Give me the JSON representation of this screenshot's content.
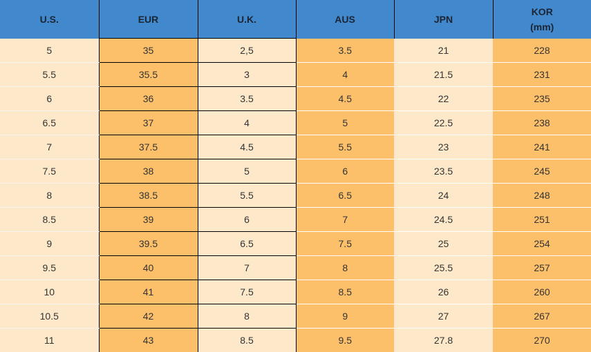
{
  "table": {
    "header": [
      "U.S.",
      "EUR",
      "U.K.",
      "AUS",
      "JPN",
      "KOR\n(mm)"
    ],
    "rows": [
      [
        "5",
        "35",
        "2,5",
        "3.5",
        "21",
        "228"
      ],
      [
        "5.5",
        "35.5",
        "3",
        "4",
        "21.5",
        "231"
      ],
      [
        "6",
        "36",
        "3.5",
        "4.5",
        "22",
        "235"
      ],
      [
        "6.5",
        "37",
        "4",
        "5",
        "22.5",
        "238"
      ],
      [
        "7",
        "37.5",
        "4.5",
        "5.5",
        "23",
        "241"
      ],
      [
        "7.5",
        "38",
        "5",
        "6",
        "23.5",
        "245"
      ],
      [
        "8",
        "38.5",
        "5.5",
        "6.5",
        "24",
        "248"
      ],
      [
        "8.5",
        "39",
        "6",
        "7",
        "24.5",
        "251"
      ],
      [
        "9",
        "39.5",
        "6.5",
        "7.5",
        "25",
        "254"
      ],
      [
        "9.5",
        "40",
        "7",
        "8",
        "25.5",
        "257"
      ],
      [
        "10",
        "41",
        "7.5",
        "8.5",
        "26",
        "260"
      ],
      [
        "10.5",
        "42",
        "8",
        "9",
        "27",
        "267"
      ],
      [
        "11",
        "43",
        "8.5",
        "9.5",
        "27.8",
        "270"
      ]
    ]
  }
}
